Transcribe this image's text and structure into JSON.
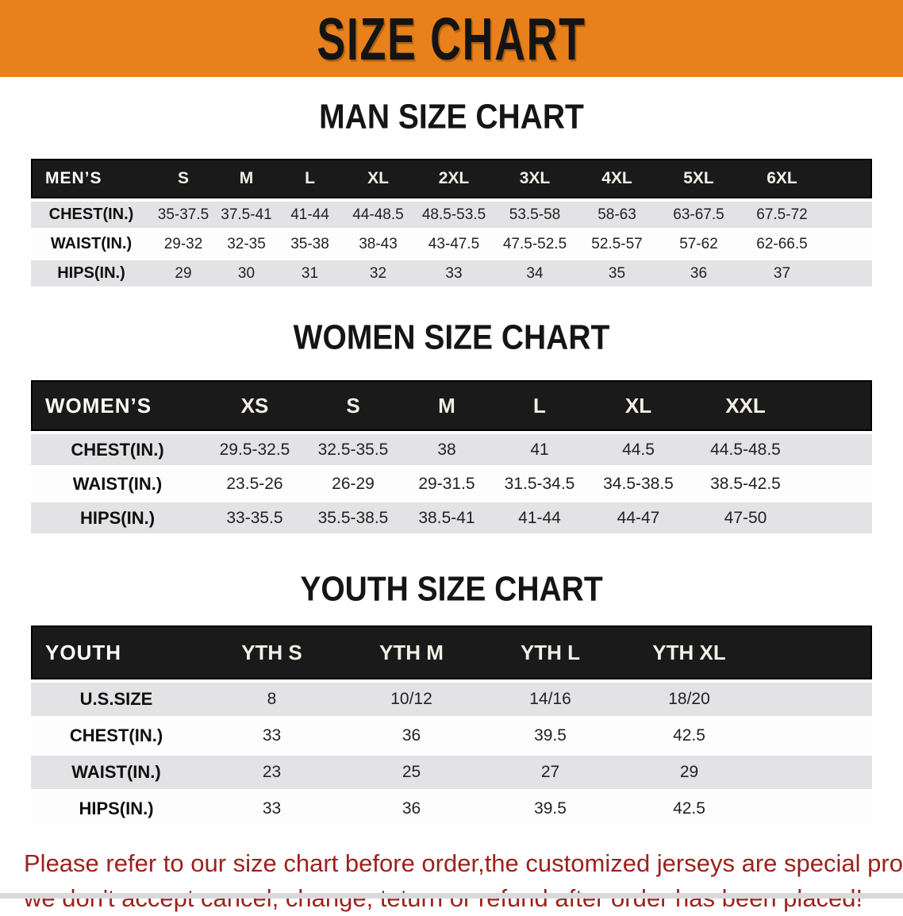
{
  "banner": {
    "title": "SIZE CHART",
    "bg_color": "#E8811B"
  },
  "sections": [
    {
      "title": "MAN SIZE CHART",
      "table": {
        "header_label": "MEN’S",
        "columns": [
          "S",
          "M",
          "L",
          "XL",
          "2XL",
          "3XL",
          "4XL",
          "5XL",
          "6XL"
        ],
        "rows": [
          {
            "label": "CHEST(IN.)",
            "values": [
              "35-37.5",
              "37.5-41",
              "41-44",
              "44-48.5",
              "48.5-53.5",
              "53.5-58",
              "58-63",
              "63-67.5",
              "67.5-72"
            ]
          },
          {
            "label": "WAIST(IN.)",
            "values": [
              "29-32",
              "32-35",
              "35-38",
              "38-43",
              "43-47.5",
              "47.5-52.5",
              "52.5-57",
              "57-62",
              "62-66.5"
            ]
          },
          {
            "label": "HIPS(IN.)",
            "values": [
              "29",
              "30",
              "31",
              "32",
              "33",
              "34",
              "35",
              "36",
              "37"
            ]
          }
        ]
      }
    },
    {
      "title": "WOMEN SIZE CHART",
      "table": {
        "header_label": "WOMEN’S",
        "columns": [
          "XS",
          "S",
          "M",
          "L",
          "XL",
          "XXL"
        ],
        "rows": [
          {
            "label": "CHEST(IN.)",
            "values": [
              "29.5-32.5",
              "32.5-35.5",
              "38",
              "41",
              "44.5",
              "44.5-48.5"
            ]
          },
          {
            "label": "WAIST(IN.)",
            "values": [
              "23.5-26",
              "26-29",
              "29-31.5",
              "31.5-34.5",
              "34.5-38.5",
              "38.5-42.5"
            ]
          },
          {
            "label": "HIPS(IN.)",
            "values": [
              "33-35.5",
              "35.5-38.5",
              "38.5-41",
              "41-44",
              "44-47",
              "47-50"
            ]
          }
        ]
      }
    },
    {
      "title": "YOUTH SIZE CHART",
      "table": {
        "header_label": "YOUTH",
        "columns": [
          "YTH S",
          "YTH M",
          "YTH L",
          "YTH XL"
        ],
        "rows": [
          {
            "label": "U.S.SIZE",
            "values": [
              "8",
              "10/12",
              "14/16",
              "18/20"
            ]
          },
          {
            "label": "CHEST(IN.)",
            "values": [
              "33",
              "36",
              "39.5",
              "42.5"
            ]
          },
          {
            "label": "WAIST(IN.)",
            "values": [
              "23",
              "25",
              "27",
              "29"
            ]
          },
          {
            "label": "HIPS(IN.)",
            "values": [
              "33",
              "36",
              "39.5",
              "42.5"
            ]
          }
        ]
      }
    }
  ],
  "disclaimer": {
    "line1": "Please refer to our size chart before order,the customized jerseys are special products,",
    "line2": "we don't accept cancel, change, teturn or refund after order has been placed!",
    "color": "#9B221D"
  }
}
